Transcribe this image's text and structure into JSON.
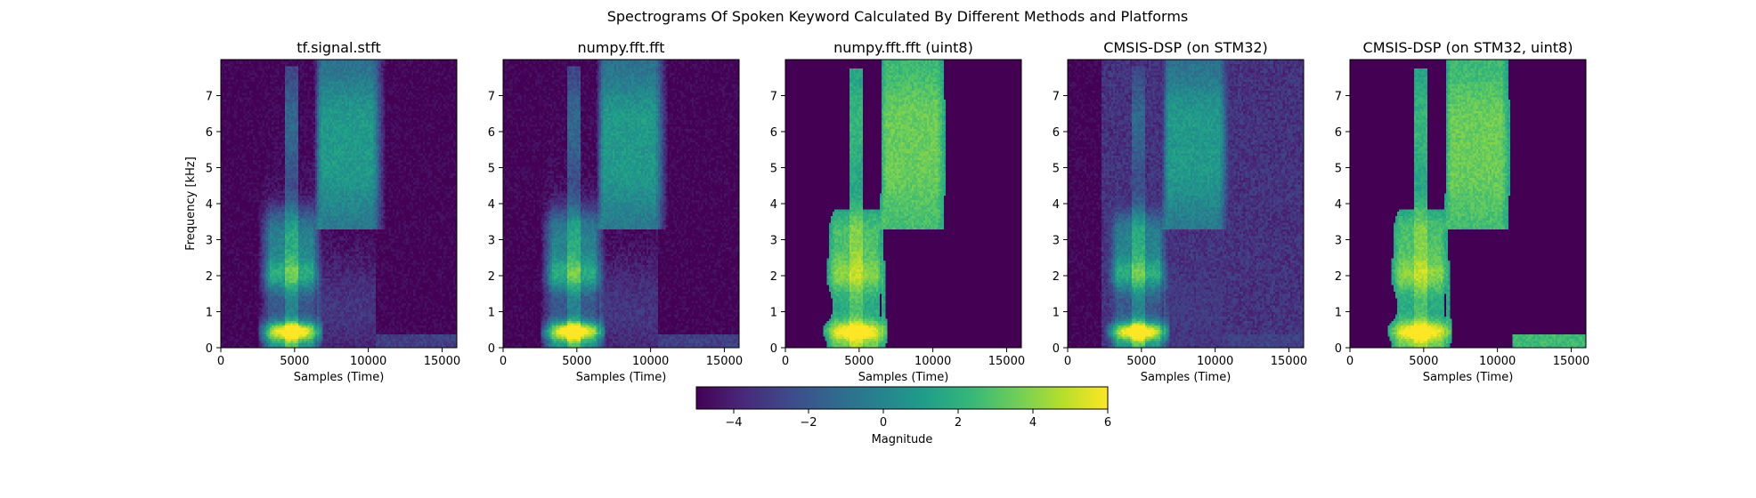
{
  "figure_title": "Spectrograms Of Spoken Keyword Calculated By Different Methods and Platforms",
  "colors": {
    "viridis": [
      "#440154",
      "#482878",
      "#3e4989",
      "#31688e",
      "#26828e",
      "#1f9e89",
      "#35b779",
      "#6ece58",
      "#b5de2b",
      "#fde725"
    ],
    "axes": "#000000",
    "background": "#ffffff"
  },
  "colorbar": {
    "label": "Magnitude",
    "colormap": "viridis",
    "range": [
      -5,
      6
    ],
    "ticks": [
      -4,
      -2,
      0,
      2,
      4,
      6
    ],
    "tick_labels": [
      "−4",
      "−2",
      "0",
      "2",
      "4",
      "6"
    ]
  },
  "chart_data": [
    {
      "type": "heatmap",
      "title": "tf.signal.stft",
      "xlabel": "Samples (Time)",
      "ylabel": "Frequency [kHz]",
      "xlim": [
        0,
        16000
      ],
      "ylim": [
        0,
        8
      ],
      "xticks": [
        0,
        5000,
        10000,
        15000
      ],
      "yticks": [
        0,
        1,
        2,
        3,
        4,
        5,
        6,
        7
      ],
      "clip_floor": false,
      "noise_floor": false,
      "hf_extension": false
    },
    {
      "type": "heatmap",
      "title": "numpy.fft.fft",
      "xlabel": "Samples (Time)",
      "ylabel": "",
      "xlim": [
        0,
        16000
      ],
      "ylim": [
        0,
        8
      ],
      "xticks": [
        0,
        5000,
        10000,
        15000
      ],
      "yticks": [
        0,
        1,
        2,
        3,
        4,
        5,
        6,
        7
      ],
      "clip_floor": false,
      "noise_floor": false,
      "hf_extension": false
    },
    {
      "type": "heatmap",
      "title": "numpy.fft.fft (uint8)",
      "xlabel": "Samples (Time)",
      "ylabel": "",
      "xlim": [
        0,
        16000
      ],
      "ylim": [
        0,
        8
      ],
      "xticks": [
        0,
        5000,
        10000,
        15000
      ],
      "yticks": [
        0,
        1,
        2,
        3,
        4,
        5,
        6,
        7
      ],
      "clip_floor": true,
      "noise_floor": false,
      "hf_extension": false
    },
    {
      "type": "heatmap",
      "title": "CMSIS-DSP (on STM32)",
      "xlabel": "Samples (Time)",
      "ylabel": "",
      "xlim": [
        0,
        16000
      ],
      "ylim": [
        0,
        8
      ],
      "xticks": [
        0,
        5000,
        10000,
        15000
      ],
      "yticks": [
        0,
        1,
        2,
        3,
        4,
        5,
        6,
        7
      ],
      "clip_floor": false,
      "noise_floor": true,
      "hf_extension": false
    },
    {
      "type": "heatmap",
      "title": "CMSIS-DSP (on STM32, uint8)",
      "xlabel": "Samples (Time)",
      "ylabel": "",
      "xlim": [
        0,
        16000
      ],
      "ylim": [
        0,
        8
      ],
      "xticks": [
        0,
        5000,
        10000,
        15000
      ],
      "yticks": [
        0,
        1,
        2,
        3,
        4,
        5,
        6,
        7
      ],
      "clip_floor": true,
      "noise_floor": false,
      "hf_extension": true
    }
  ]
}
